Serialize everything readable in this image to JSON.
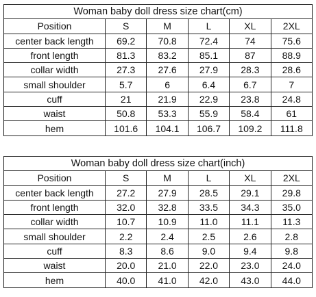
{
  "tables": [
    {
      "title": "Woman baby doll dress size chart(cm)",
      "header": [
        "Position",
        "S",
        "M",
        "L",
        "XL",
        "2XL"
      ],
      "rows": [
        {
          "label": "center back length",
          "values": [
            "69.2",
            "70.8",
            "72.4",
            "74",
            "75.6"
          ]
        },
        {
          "label": "front length",
          "values": [
            "81.3",
            "83.2",
            "85.1",
            "87",
            "88.9"
          ]
        },
        {
          "label": "collar width",
          "values": [
            "27.3",
            "27.6",
            "27.9",
            "28.3",
            "28.6"
          ]
        },
        {
          "label": "small shoulder",
          "values": [
            "5.7",
            "6",
            "6.4",
            "6.7",
            "7"
          ]
        },
        {
          "label": "cuff",
          "values": [
            "21",
            "21.9",
            "22.9",
            "23.8",
            "24.8"
          ]
        },
        {
          "label": "waist",
          "values": [
            "50.8",
            "53.3",
            "55.9",
            "58.4",
            "61"
          ]
        },
        {
          "label": "hem",
          "values": [
            "101.6",
            "104.1",
            "106.7",
            "109.2",
            "111.8"
          ]
        }
      ]
    },
    {
      "title": "Woman baby doll dress size chart(inch)",
      "header": [
        "Position",
        "S",
        "M",
        "L",
        "XL",
        "2XL"
      ],
      "rows": [
        {
          "label": "center back length",
          "values": [
            "27.2",
            "27.9",
            "28.5",
            "29.1",
            "29.8"
          ]
        },
        {
          "label": "front length",
          "values": [
            "32.0",
            "32.8",
            "33.5",
            "34.3",
            "35.0"
          ]
        },
        {
          "label": "collar width",
          "values": [
            "10.7",
            "10.9",
            "11.0",
            "11.1",
            "11.3"
          ]
        },
        {
          "label": "small shoulder",
          "values": [
            "2.2",
            "2.4",
            "2.5",
            "2.6",
            "2.8"
          ]
        },
        {
          "label": "cuff",
          "values": [
            "8.3",
            "8.6",
            "9.0",
            "9.4",
            "9.8"
          ]
        },
        {
          "label": "waist",
          "values": [
            "20.0",
            "21.0",
            "22.0",
            "23.0",
            "24.0"
          ]
        },
        {
          "label": "hem",
          "values": [
            "40.0",
            "41.0",
            "42.0",
            "43.0",
            "44.0"
          ]
        }
      ]
    }
  ]
}
